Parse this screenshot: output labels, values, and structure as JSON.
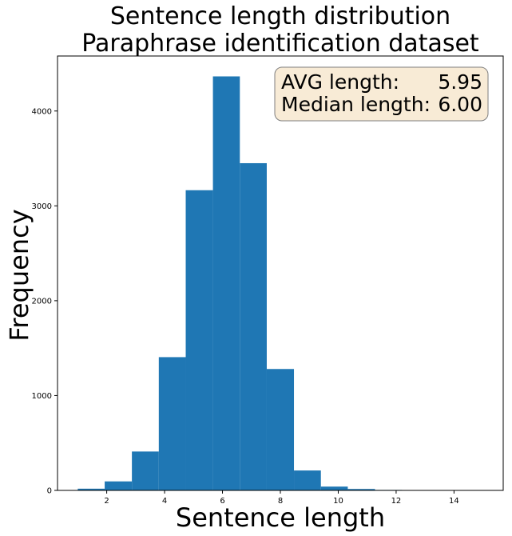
{
  "chart_data": {
    "type": "bar",
    "title": [
      "Sentence length distribution",
      "Paraphrase identification dataset"
    ],
    "xlabel": "Sentence length",
    "ylabel": "Frequency",
    "xlim": [
      0.3,
      15.7
    ],
    "ylim": [
      0,
      4580
    ],
    "xticks": [
      2,
      4,
      6,
      8,
      10,
      12,
      14
    ],
    "yticks": [
      0,
      1000,
      2000,
      3000,
      4000
    ],
    "bins": [
      {
        "x0": 1.0,
        "x1": 1.93,
        "value": 18
      },
      {
        "x0": 1.93,
        "x1": 2.87,
        "value": 95
      },
      {
        "x0": 2.87,
        "x1": 3.8,
        "value": 410
      },
      {
        "x0": 3.8,
        "x1": 4.73,
        "value": 1405
      },
      {
        "x0": 4.73,
        "x1": 5.67,
        "value": 3165
      },
      {
        "x0": 5.67,
        "x1": 6.6,
        "value": 4365
      },
      {
        "x0": 6.6,
        "x1": 7.53,
        "value": 3450
      },
      {
        "x0": 7.53,
        "x1": 8.47,
        "value": 1280
      },
      {
        "x0": 8.47,
        "x1": 9.4,
        "value": 210
      },
      {
        "x0": 9.4,
        "x1": 10.33,
        "value": 40
      },
      {
        "x0": 10.33,
        "x1": 11.27,
        "value": 15
      },
      {
        "x0": 11.27,
        "x1": 12.2,
        "value": 5
      },
      {
        "x0": 12.2,
        "x1": 13.13,
        "value": 2
      },
      {
        "x0": 13.13,
        "x1": 14.07,
        "value": 1
      },
      {
        "x0": 14.07,
        "x1": 15.0,
        "value": 1
      }
    ],
    "bar_color": "#1f77b4",
    "grid": false,
    "annotation": {
      "position": "top-right",
      "lines": [
        {
          "label": "AVG length:",
          "value": "5.95"
        },
        {
          "label": "Median length:",
          "value": "6.00"
        }
      ],
      "box_fill": "#f8ebd6",
      "box_edge": "#7f7f7f"
    }
  }
}
